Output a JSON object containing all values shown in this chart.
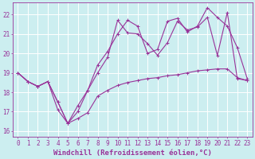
{
  "background_color": "#cceef0",
  "grid_color": "#b0dde0",
  "line_color": "#993399",
  "xlim": [
    -0.5,
    23.5
  ],
  "ylim": [
    15.7,
    22.6
  ],
  "xticks": [
    0,
    1,
    2,
    3,
    4,
    5,
    6,
    7,
    8,
    9,
    10,
    11,
    12,
    13,
    14,
    15,
    16,
    17,
    18,
    19,
    20,
    21,
    22,
    23
  ],
  "yticks": [
    16,
    17,
    18,
    19,
    20,
    21,
    22
  ],
  "xlabel": "Windchill (Refroidissement éolien,°C)",
  "tick_fontsize": 5.5,
  "xlabel_fontsize": 6.5,
  "line_width": 0.8,
  "marker_size": 2.5,
  "line1_x": [
    0,
    1,
    2,
    3,
    4,
    5,
    6,
    7,
    8,
    9,
    10,
    11,
    12,
    13,
    14,
    15,
    16,
    17,
    18,
    19,
    20,
    21,
    22,
    23
  ],
  "line1_y": [
    19.0,
    18.55,
    18.3,
    18.55,
    17.5,
    16.4,
    16.65,
    16.95,
    17.8,
    18.1,
    18.35,
    18.5,
    18.6,
    18.7,
    18.75,
    18.85,
    18.9,
    19.0,
    19.1,
    19.15,
    19.2,
    19.2,
    18.75,
    18.6
  ],
  "line2_x": [
    0,
    1,
    2,
    3,
    4,
    5,
    6,
    7,
    8,
    9,
    10,
    11,
    12,
    13,
    14,
    15,
    16,
    17,
    18,
    19,
    20,
    21,
    22,
    23
  ],
  "line2_y": [
    19.0,
    18.55,
    18.3,
    18.55,
    17.1,
    16.4,
    17.0,
    18.1,
    19.0,
    19.8,
    21.7,
    21.05,
    21.0,
    20.5,
    19.9,
    20.55,
    21.65,
    21.2,
    21.35,
    21.85,
    19.9,
    22.1,
    18.7,
    18.6
  ],
  "line3_x": [
    0,
    1,
    2,
    3,
    4,
    5,
    6,
    7,
    8,
    9,
    10,
    11,
    12,
    13,
    14,
    15,
    16,
    17,
    18,
    19,
    20,
    21,
    22,
    23
  ],
  "line3_y": [
    19.0,
    18.55,
    18.3,
    18.55,
    17.5,
    16.4,
    17.3,
    18.1,
    19.4,
    20.1,
    21.0,
    21.7,
    21.4,
    20.0,
    20.2,
    21.65,
    21.8,
    21.1,
    21.4,
    22.35,
    21.85,
    21.4,
    20.3,
    18.7
  ]
}
